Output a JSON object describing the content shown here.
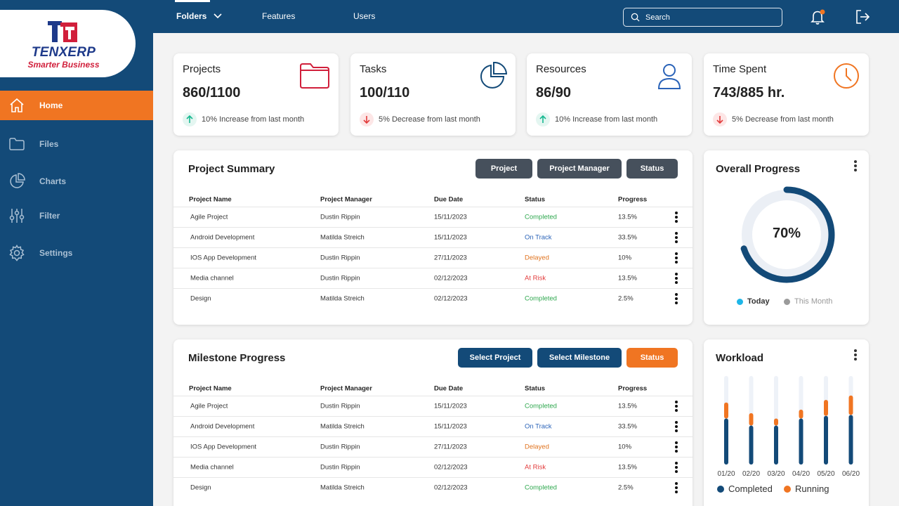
{
  "brand": {
    "name": "TENXERP",
    "tagline": "Smarter Business"
  },
  "sidebar": {
    "items": [
      {
        "label": "Home",
        "icon": "home-icon",
        "active": true
      },
      {
        "label": "Files",
        "icon": "folder-icon"
      },
      {
        "label": "Charts",
        "icon": "pie-chart-icon"
      },
      {
        "label": "Filter",
        "icon": "sliders-icon"
      },
      {
        "label": "Settings",
        "icon": "gear-icon"
      }
    ]
  },
  "topbar": {
    "tabs": [
      "Folders",
      "Features",
      "Users"
    ],
    "search_placeholder": "Search"
  },
  "stats": [
    {
      "title": "Projects",
      "value": "860/1100",
      "note": "10% Increase from last month",
      "trend": "up",
      "icon": "folder-icon"
    },
    {
      "title": "Tasks",
      "value": "100/110",
      "note": "5% Decrease from last month",
      "trend": "down",
      "icon": "pie-chart-icon"
    },
    {
      "title": "Resources",
      "value": "86/90",
      "note": "10% Increase from last month",
      "trend": "up",
      "icon": "user-icon"
    },
    {
      "title": "Time Spent",
      "value": "743/885 hr.",
      "note": "5% Decrease from last month",
      "trend": "down",
      "icon": "clock-icon"
    }
  ],
  "project_summary": {
    "title": "Project Summary",
    "filters": [
      "Project",
      "Project Manager",
      "Status"
    ],
    "columns": [
      "Project Name",
      "Project Manager",
      "Due Date",
      "Status",
      "Progress"
    ],
    "rows": [
      [
        "Agile Project",
        "Dustin Rippin",
        "15/11/2023",
        "Completed",
        "13.5%"
      ],
      [
        "Android Development",
        "Matilda Streich",
        "15/11/2023",
        "On Track",
        "33.5%"
      ],
      [
        "IOS App Development",
        "Dustin Rippin",
        "27/11/2023",
        "Delayed",
        "10%"
      ],
      [
        "Media channel",
        "Dustin Rippin",
        "02/12/2023",
        "At Risk",
        "13.5%"
      ],
      [
        "Design",
        "Matilda Streich",
        "02/12/2023",
        "Completed",
        "2.5%"
      ]
    ]
  },
  "milestone_progress": {
    "title": "Milestone Progress",
    "filters": [
      "Select Project",
      "Select Milestone",
      "Status"
    ],
    "columns": [
      "Project Name",
      "Project Manager",
      "Due Date",
      "Status",
      "Progress"
    ],
    "rows": [
      [
        "Agile Project",
        "Dustin Rippin",
        "15/11/2023",
        "Completed",
        "13.5%"
      ],
      [
        "Android Development",
        "Matilda Streich",
        "15/11/2023",
        "On Track",
        "33.5%"
      ],
      [
        "IOS App Development",
        "Dustin Rippin",
        "27/11/2023",
        "Delayed",
        "10%"
      ],
      [
        "Media channel",
        "Dustin Rippin",
        "02/12/2023",
        "At Risk",
        "13.5%"
      ],
      [
        "Design",
        "Matilda Streich",
        "02/12/2023",
        "Completed",
        "2.5%"
      ]
    ]
  },
  "status_colors": {
    "Completed": "#2fa84f",
    "On Track": "#2a63b8",
    "Delayed": "#e0731f",
    "At Risk": "#e23b3b"
  },
  "overall_progress": {
    "title": "Overall Progress",
    "value": 70,
    "label": "70%",
    "legend": [
      {
        "name": "Today",
        "color": "#1eb6e8"
      },
      {
        "name": "This Month",
        "color": "#9a9a9a"
      }
    ]
  },
  "chart_data": {
    "type": "bar",
    "title": "Workload",
    "categories": [
      "01/20",
      "02/20",
      "03/20",
      "04/20",
      "05/20",
      "06/20"
    ],
    "series": [
      {
        "name": "Completed",
        "color": "#134a78",
        "values": [
          52,
          44,
          44,
          52,
          55,
          56
        ]
      },
      {
        "name": "Running",
        "color": "#f07522",
        "values": [
          18,
          14,
          8,
          10,
          18,
          22
        ]
      }
    ],
    "ylim": [
      0,
      100
    ],
    "legend_position": "bottom"
  },
  "colors": {
    "primary": "#134a78",
    "accent": "#f07522"
  }
}
